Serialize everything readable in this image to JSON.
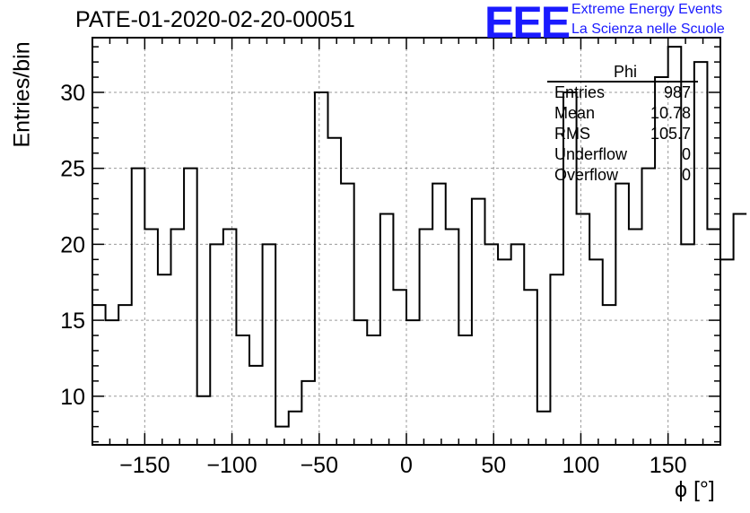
{
  "title": "PATE-01-2020-02-20-00051",
  "logo": {
    "text": "EEE",
    "line1": "Extreme Energy Events",
    "line2": "La Scienza nelle Scuole",
    "color": "#1a1aff"
  },
  "stats": {
    "name": "Phi",
    "rows": [
      {
        "label": "Entries",
        "value": "987"
      },
      {
        "label": "Mean",
        "value": "10.78"
      },
      {
        "label": "RMS",
        "value": "105.7"
      },
      {
        "label": "Underflow",
        "value": "0"
      },
      {
        "label": "Overflow",
        "value": "0"
      }
    ]
  },
  "chart_data": {
    "type": "histogram",
    "title": "PATE-01-2020-02-20-00051",
    "xlabel": "ϕ [°]",
    "ylabel": "Entries/bin",
    "xlim": [
      -180,
      180
    ],
    "ylim": [
      6.8,
      33.6
    ],
    "bin_width": 7.5,
    "values": [
      16,
      15,
      16,
      25,
      21,
      18,
      21,
      25,
      10,
      20,
      21,
      14,
      12,
      20,
      8,
      9,
      11,
      30,
      27,
      24,
      15,
      14,
      22,
      17,
      15,
      21,
      24,
      21,
      14,
      23,
      20,
      19,
      20,
      17,
      9,
      18,
      30,
      22,
      19,
      16,
      24,
      21,
      25,
      31,
      33,
      20,
      32,
      21,
      19,
      22
    ],
    "xticks": [
      -150,
      -100,
      -50,
      0,
      50,
      100,
      150
    ],
    "xtick_labels": [
      "−150",
      "−100",
      "−50",
      "0",
      "50",
      "100",
      "150"
    ],
    "yticks": [
      10,
      15,
      20,
      25,
      30
    ],
    "ytick_labels": [
      "10",
      "15",
      "20",
      "25",
      "30"
    ],
    "grid": true,
    "line_color": "#000000"
  }
}
